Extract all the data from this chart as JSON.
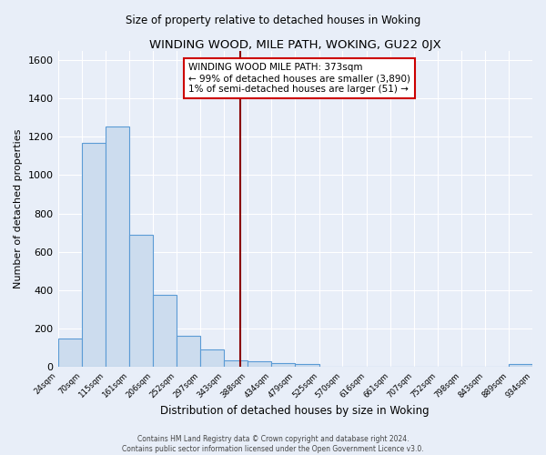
{
  "title": "WINDING WOOD, MILE PATH, WOKING, GU22 0JX",
  "subtitle": "Size of property relative to detached houses in Woking",
  "xlabel": "Distribution of detached houses by size in Woking",
  "ylabel": "Number of detached properties",
  "footer_line1": "Contains HM Land Registry data © Crown copyright and database right 2024.",
  "footer_line2": "Contains public sector information licensed under the Open Government Licence v3.0.",
  "bin_edges": [
    24,
    70,
    115,
    161,
    206,
    252,
    297,
    343,
    388,
    434,
    479,
    525,
    570,
    616,
    661,
    707,
    752,
    798,
    843,
    889,
    934
  ],
  "bar_heights": [
    148,
    1170,
    1255,
    688,
    375,
    160,
    90,
    35,
    30,
    20,
    15,
    0,
    0,
    0,
    0,
    0,
    0,
    0,
    0,
    15
  ],
  "bar_color": "#ccdcee",
  "bar_edge_color": "#5b9bd5",
  "vline_x": 373,
  "vline_color": "#8b0000",
  "annotation_title": "WINDING WOOD MILE PATH: 373sqm",
  "annotation_line1": "← 99% of detached houses are smaller (3,890)",
  "annotation_line2": "1% of semi-detached houses are larger (51) →",
  "annotation_box_color": "#ffffff",
  "annotation_border_color": "#cc0000",
  "ylim": [
    0,
    1650
  ],
  "background_color": "#e8eef8",
  "plot_background_color": "#e8eef8",
  "tick_labels": [
    "24sqm",
    "70sqm",
    "115sqm",
    "161sqm",
    "206sqm",
    "252sqm",
    "297sqm",
    "343sqm",
    "388sqm",
    "434sqm",
    "479sqm",
    "525sqm",
    "570sqm",
    "616sqm",
    "661sqm",
    "707sqm",
    "752sqm",
    "798sqm",
    "843sqm",
    "889sqm",
    "934sqm"
  ],
  "yticks": [
    0,
    200,
    400,
    600,
    800,
    1000,
    1200,
    1400,
    1600
  ]
}
